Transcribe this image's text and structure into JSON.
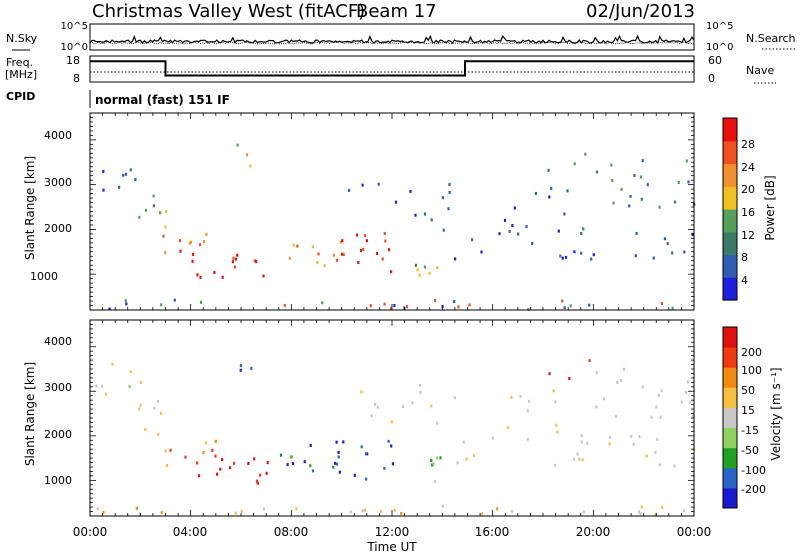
{
  "header": {
    "station": "Christmas Valley West (fitACF)",
    "beam": "Beam 17",
    "date": "02/Jun/2013"
  },
  "colors": {
    "power_scale": [
      "#1f1fe0",
      "#2f5fb0",
      "#3a7a66",
      "#55a05a",
      "#f0c020",
      "#f09030",
      "#f05020",
      "#e81010"
    ],
    "velocity_scale": [
      "#1a1ad0",
      "#2a64c8",
      "#22a022",
      "#8fd060",
      "#c8c8c8",
      "#f5c040",
      "#f08a10",
      "#f03a10",
      "#e01010"
    ]
  },
  "chart_data": [
    {
      "type": "line",
      "name": "noise",
      "left_label": "N.Sky",
      "right_label": "N.Search",
      "left_ticks": [
        "10^5",
        "10^0"
      ],
      "right_ticks": [
        "10^5",
        "10^0"
      ]
    },
    {
      "type": "line",
      "name": "frequency",
      "left_label_line1": "Freq.",
      "left_label_line2": "[MHz]",
      "right_label": "Nave",
      "left_ticks": [
        "18",
        "8"
      ],
      "right_ticks": [
        "60",
        "0"
      ],
      "freq_steps": [
        {
          "x": 0.0,
          "y": 16
        },
        {
          "x": 3.0,
          "y": 16
        },
        {
          "x": 3.0,
          "y": 10.5
        },
        {
          "x": 14.9,
          "y": 10.5
        },
        {
          "x": 14.9,
          "y": 16
        },
        {
          "x": 24.0,
          "y": 16
        }
      ]
    },
    {
      "type": "heatmap",
      "name": "cpid",
      "label": "CPID",
      "mode": "normal (fast) 151 IF"
    },
    {
      "type": "heatmap",
      "name": "power",
      "ylabel": "Slant Range [km]",
      "y_ticks": [
        "1000",
        "2000",
        "3000",
        "4000"
      ],
      "colorbar_label": "Power [dB]",
      "colorbar_ticks": [
        "4",
        "8",
        "12",
        "16",
        "20",
        "24",
        "28"
      ],
      "ylim": [
        200,
        4600
      ]
    },
    {
      "type": "heatmap",
      "name": "velocity",
      "ylabel": "Slant Range [km]",
      "y_ticks": [
        "1000",
        "2000",
        "3000",
        "4000"
      ],
      "xlabel": "Time UT",
      "x_ticks": [
        "00:00",
        "04:00",
        "08:00",
        "12:00",
        "16:00",
        "20:00",
        "00:00"
      ],
      "colorbar_label": "Velocity [m s⁻¹]",
      "colorbar_ticks": [
        "200",
        "100",
        "50",
        "15",
        "-15",
        "-50",
        "-100",
        "-200"
      ],
      "ylim": [
        200,
        4600
      ]
    }
  ]
}
